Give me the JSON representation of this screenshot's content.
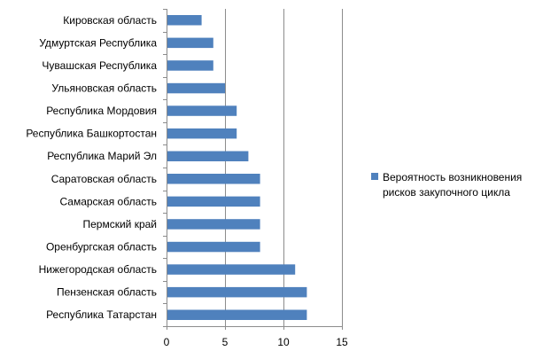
{
  "chart_data": {
    "type": "bar",
    "orientation": "horizontal",
    "categories": [
      "Кировская область",
      "Удмуртская Республика",
      "Чувашская Республика",
      "Ульяновская область",
      "Республика Мордовия",
      "Республика Башкортостан",
      "Республика Марий Эл",
      "Саратовская область",
      "Самарская область",
      "Пермский край",
      "Оренбургская область",
      "Нижегородская область",
      "Пензенская область",
      "Республика Татарстан"
    ],
    "series": [
      {
        "name": "Вероятность возникновения рисков закупочного цикла",
        "values": [
          3,
          4,
          4,
          5,
          6,
          6,
          7,
          8,
          8,
          8,
          8,
          11,
          12,
          12
        ],
        "color": "#4F81BD"
      }
    ],
    "xlim": [
      0,
      15
    ],
    "x_ticks": [
      0,
      5,
      10,
      15
    ],
    "grid": "vertical",
    "legend": {
      "position": "right",
      "lines": [
        "Вероятность возникновения",
        "рисков закупочного цикла"
      ]
    },
    "title": "",
    "xlabel": "",
    "ylabel": ""
  }
}
